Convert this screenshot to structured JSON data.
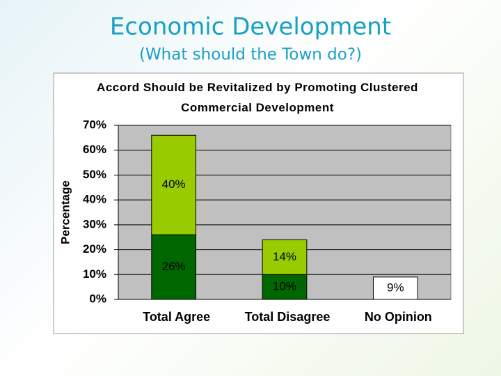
{
  "header": {
    "title": "Economic Development",
    "subtitle": "(What should the Town do?)"
  },
  "chart_data": {
    "type": "bar",
    "stacked": true,
    "title": "Accord Should be Revitalized by Promoting Clustered Commercial Development",
    "y_label": "Percentage",
    "categories": [
      "Total Agree",
      "Total Disagree",
      "No Opinion"
    ],
    "series": [
      {
        "color": "#006600",
        "values": [
          26,
          10,
          null
        ],
        "value_labels": [
          "26%",
          "10%",
          null
        ]
      },
      {
        "color": "#99cc00",
        "values": [
          40,
          14,
          null
        ],
        "value_labels": [
          "40%",
          "14%",
          null
        ]
      },
      {
        "color": "#ffffff",
        "values": [
          null,
          null,
          9
        ],
        "value_labels": [
          null,
          null,
          "9%"
        ]
      }
    ],
    "ylim": [
      0,
      70
    ],
    "yticks": [
      {
        "value": 0,
        "label": "0%"
      },
      {
        "value": 10,
        "label": "10%"
      },
      {
        "value": 20,
        "label": "20%"
      },
      {
        "value": 30,
        "label": "30%"
      },
      {
        "value": 40,
        "label": "40%"
      },
      {
        "value": 50,
        "label": "50%"
      },
      {
        "value": 60,
        "label": "60%"
      },
      {
        "value": 70,
        "label": "70%"
      }
    ],
    "grid": true,
    "plot_color": "#c0c0c0"
  }
}
